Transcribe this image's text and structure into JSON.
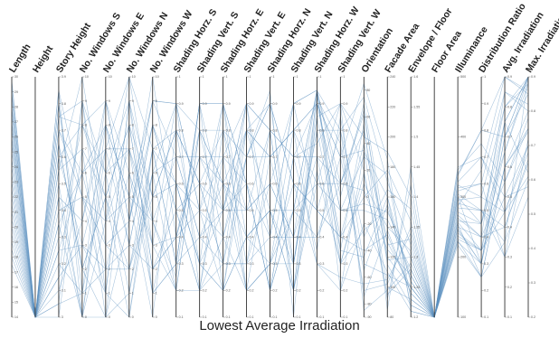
{
  "caption": "Lowest Average Irradiation",
  "chart_data": {
    "type": "parallel-coordinates",
    "title": "Lowest Average Irradiation",
    "axes": [
      {
        "name": "Length",
        "range": [
          14,
          30
        ],
        "ticks": [
          14,
          15,
          16,
          17,
          18,
          19,
          20,
          21,
          22,
          23,
          24,
          25,
          26,
          27,
          28,
          29,
          30
        ]
      },
      {
        "name": "Height",
        "range": [
          0,
          1
        ],
        "ticks": []
      },
      {
        "name": "Story Height",
        "range": [
          3.0,
          3.9
        ],
        "ticks": [
          3.0,
          3.1,
          3.2,
          3.3,
          3.4,
          3.5,
          3.6,
          3.7,
          3.8,
          3.9
        ]
      },
      {
        "name": "No. Windows S",
        "range": [
          0,
          10
        ],
        "ticks": [
          0,
          1,
          2,
          3,
          4,
          5,
          6,
          7,
          8,
          9,
          10
        ]
      },
      {
        "name": "No. Windows E",
        "range": [
          0,
          10
        ],
        "ticks": [
          0,
          1,
          2,
          3,
          4,
          5,
          6,
          7,
          8,
          9,
          10
        ]
      },
      {
        "name": "No. Windows N",
        "range": [
          0,
          10
        ],
        "ticks": [
          0,
          1,
          2,
          3,
          4,
          5,
          6,
          7,
          8,
          9,
          10
        ]
      },
      {
        "name": "No. Windows W",
        "range": [
          0,
          10
        ],
        "ticks": [
          0,
          1,
          2,
          3,
          4,
          5,
          6,
          7,
          8,
          9,
          10
        ]
      },
      {
        "name": "Shading Horz. S",
        "range": [
          0.1,
          1.0
        ],
        "ticks": [
          0.1,
          0.2,
          0.3,
          0.4,
          0.5,
          0.6,
          0.7,
          0.8,
          0.9,
          1.0
        ]
      },
      {
        "name": "Shading Vert. S",
        "range": [
          0.1,
          1.0
        ],
        "ticks": [
          0.1,
          0.2,
          0.3,
          0.4,
          0.5,
          0.6,
          0.7,
          0.8,
          0.9,
          1.0
        ]
      },
      {
        "name": "Shading Horz. E",
        "range": [
          0.1,
          1.0
        ],
        "ticks": [
          0.1,
          0.2,
          0.3,
          0.4,
          0.5,
          0.6,
          0.7,
          0.8,
          0.9,
          1.0
        ]
      },
      {
        "name": "Shading Vert. E",
        "range": [
          0.1,
          1.0
        ],
        "ticks": [
          0.1,
          0.2,
          0.3,
          0.4,
          0.5,
          0.6,
          0.7,
          0.8,
          0.9,
          1.0
        ]
      },
      {
        "name": "Shading Horz. N",
        "range": [
          0.1,
          1.0
        ],
        "ticks": [
          0.1,
          0.2,
          0.3,
          0.4,
          0.5,
          0.6,
          0.7,
          0.8,
          0.9,
          1.0
        ]
      },
      {
        "name": "Shading Vert. N",
        "range": [
          0.1,
          1.0
        ],
        "ticks": [
          0.1,
          0.2,
          0.3,
          0.4,
          0.5,
          0.6,
          0.7,
          0.8,
          0.9,
          1.0
        ]
      },
      {
        "name": "Shading Horz. W",
        "range": [
          0.1,
          1.0
        ],
        "ticks": [
          0.1,
          0.2,
          0.3,
          0.4,
          0.5,
          0.6,
          0.7,
          0.8,
          0.9,
          1.0
        ]
      },
      {
        "name": "Shading Vert. W",
        "range": [
          0.1,
          1.0
        ],
        "ticks": [
          0.1,
          0.2,
          0.3,
          0.4,
          0.5,
          0.6,
          0.7,
          0.8,
          0.9,
          1.0
        ]
      },
      {
        "name": "Orientation",
        "range": [
          -90,
          90
        ],
        "ticks": [
          -90,
          -80,
          -60,
          -40,
          -20,
          0,
          20,
          40,
          60,
          80
        ]
      },
      {
        "name": "Facade Area",
        "range": [
          80,
          240
        ],
        "ticks": [
          80,
          100,
          120,
          140,
          160,
          180,
          200,
          220,
          240
        ]
      },
      {
        "name": "Envelope / Floor",
        "range": [
          1.2,
          1.6
        ],
        "ticks": [
          1.2,
          1.25,
          1.3,
          1.35,
          1.4,
          1.45,
          1.5,
          1.55,
          1.6
        ]
      },
      {
        "name": "Floor Area",
        "range": [
          0,
          1
        ],
        "ticks": []
      },
      {
        "name": "Illuminance",
        "range": [
          100,
          500
        ],
        "ticks": [
          100,
          200,
          300,
          400,
          500
        ]
      },
      {
        "name": "Distribution Ratio",
        "range": [
          0.1,
          1.0
        ],
        "ticks": [
          0.1,
          0.2,
          0.3,
          0.4,
          0.5,
          0.6,
          0.7,
          0.8,
          0.9,
          1.0
        ]
      },
      {
        "name": "Avg. Irradiation",
        "range": [
          0.1,
          0.9
        ],
        "ticks": [
          0.1,
          0.2,
          0.3,
          0.4,
          0.5,
          0.6,
          0.7,
          0.8,
          0.9
        ]
      },
      {
        "name": "Max. Irradiation",
        "range": [
          0.2,
          0.9
        ],
        "ticks": [
          0.2,
          0.3,
          0.4,
          0.5,
          0.6,
          0.7,
          0.8,
          0.9
        ]
      }
    ],
    "series": [
      {
        "values": [
          29.5,
          0,
          3.85,
          0,
          0,
          4,
          9,
          0.9,
          0.2,
          0.3,
          0.7,
          0.95,
          0.1,
          0.95,
          0.6,
          62,
          120,
          1.25,
          0,
          300,
          0.3,
          0.7,
          0.85
        ]
      },
      {
        "values": [
          28.0,
          0,
          3.8,
          2,
          5,
          8,
          2,
          0.4,
          0.8,
          0.6,
          0.4,
          0.3,
          0.5,
          0.95,
          0.2,
          34,
          160,
          1.22,
          0,
          250,
          0.4,
          0.55,
          0.75
        ]
      },
      {
        "values": [
          27.0,
          0,
          3.75,
          9,
          3,
          2,
          7,
          0.6,
          0.5,
          0.9,
          0.2,
          0.7,
          0.8,
          0.9,
          0.5,
          -5,
          150,
          1.3,
          0,
          320,
          0.55,
          0.8,
          0.9
        ]
      },
      {
        "values": [
          26.0,
          0,
          3.7,
          6,
          8,
          5,
          4,
          0.25,
          0.9,
          0.2,
          0.8,
          0.5,
          0.3,
          0.92,
          0.75,
          -70,
          102,
          1.35,
          0,
          220,
          0.25,
          0.35,
          0.6
        ]
      },
      {
        "values": [
          25.0,
          0,
          3.6,
          3,
          1,
          9,
          5,
          0.8,
          0.3,
          0.5,
          0.9,
          0.2,
          0.7,
          0.7,
          0.3,
          18,
          95,
          1.28,
          0,
          275,
          0.45,
          0.65,
          0.88
        ]
      },
      {
        "values": [
          24.0,
          0,
          3.5,
          0,
          7,
          3,
          8,
          0.5,
          0.6,
          0.8,
          0.5,
          0.8,
          0.2,
          0.85,
          0.9,
          45,
          190,
          1.4,
          0,
          350,
          0.7,
          0.45,
          0.7
        ]
      },
      {
        "values": [
          23.0,
          0,
          3.4,
          5,
          4,
          7,
          1,
          0.3,
          0.4,
          0.3,
          0.3,
          0.6,
          0.9,
          0.5,
          0.4,
          -40,
          135,
          1.24,
          0,
          230,
          0.35,
          0.75,
          0.95
        ]
      },
      {
        "values": [
          22.0,
          0,
          3.3,
          8,
          6,
          1,
          6,
          0.7,
          0.7,
          0.7,
          0.6,
          0.4,
          0.4,
          0.95,
          0.8,
          75,
          170,
          1.32,
          0,
          290,
          0.5,
          0.3,
          0.55
        ]
      },
      {
        "values": [
          21.0,
          0,
          3.2,
          1,
          2,
          6,
          3,
          0.2,
          0.2,
          0.4,
          0.8,
          0.9,
          0.6,
          0.3,
          0.2,
          -20,
          110,
          1.21,
          0,
          245,
          0.3,
          0.6,
          0.8
        ]
      },
      {
        "values": [
          20.0,
          0,
          3.1,
          4,
          9,
          4,
          9,
          0.9,
          0.8,
          0.6,
          0.2,
          0.3,
          0.8,
          0.6,
          0.6,
          5,
          125,
          1.27,
          0,
          310,
          0.6,
          0.85,
          0.82
        ]
      },
      {
        "values": [
          19.0,
          0,
          3.0,
          7,
          0,
          8,
          2,
          0.4,
          0.5,
          0.2,
          0.7,
          0.7,
          0.3,
          0.8,
          0.35,
          55,
          85,
          1.45,
          0,
          265,
          0.4,
          0.4,
          0.65
        ]
      },
      {
        "values": [
          18.0,
          0,
          3.65,
          2,
          5,
          2,
          5,
          0.6,
          0.3,
          0.9,
          0.4,
          0.5,
          0.5,
          0.4,
          0.7,
          -55,
          155,
          1.26,
          0,
          335,
          0.8,
          0.7,
          0.9
        ]
      },
      {
        "values": [
          29.0,
          0,
          3.55,
          10,
          4,
          10,
          7,
          0.3,
          0.9,
          0.5,
          0.6,
          0.2,
          0.7,
          0.9,
          0.5,
          30,
          175,
          1.23,
          0,
          240,
          0.35,
          0.5,
          0.7
        ]
      },
      {
        "values": [
          28.5,
          0,
          3.45,
          0,
          8,
          5,
          0,
          0.8,
          0.6,
          0.3,
          0.9,
          0.8,
          0.2,
          0.6,
          0.9,
          -85,
          98,
          1.29,
          0,
          285,
          0.65,
          0.9,
          0.85
        ]
      },
      {
        "values": [
          27.5,
          0,
          3.35,
          6,
          2,
          3,
          8,
          0.5,
          0.2,
          0.8,
          0.3,
          0.4,
          0.9,
          0.95,
          0.3,
          10,
          140,
          1.31,
          0,
          255,
          0.25,
          0.6,
          0.75
        ]
      },
      {
        "values": [
          26.5,
          0,
          3.25,
          3,
          7,
          7,
          4,
          0.7,
          0.4,
          0.6,
          0.5,
          0.6,
          0.4,
          0.7,
          0.6,
          65,
          115,
          1.22,
          0,
          305,
          0.5,
          0.35,
          0.92
        ]
      },
      {
        "values": [
          25.5,
          0,
          3.15,
          9,
          1,
          0,
          6,
          0.2,
          0.8,
          0.4,
          0.7,
          0.9,
          0.6,
          0.5,
          0.8,
          -30,
          165,
          1.38,
          0,
          225,
          0.3,
          0.75,
          0.62
        ]
      },
      {
        "values": [
          24.5,
          0,
          3.05,
          1,
          6,
          9,
          3,
          0.9,
          0.5,
          0.7,
          0.2,
          0.3,
          0.3,
          0.85,
          0.4,
          40,
          130,
          1.25,
          0,
          345,
          0.75,
          0.55,
          0.78
        ]
      },
      {
        "values": [
          23.5,
          0,
          3.85,
          5,
          3,
          4,
          10,
          0.4,
          0.7,
          0.5,
          0.8,
          0.7,
          0.8,
          0.3,
          0.25,
          -65,
          105,
          1.34,
          0,
          260,
          0.45,
          0.8,
          0.88
        ]
      },
      {
        "values": [
          22.5,
          0,
          3.75,
          8,
          9,
          6,
          1,
          0.6,
          0.3,
          0.2,
          0.4,
          0.5,
          0.2,
          0.9,
          0.7,
          85,
          185,
          1.21,
          0,
          295,
          0.55,
          0.45,
          0.68
        ]
      },
      {
        "values": [
          21.5,
          0,
          3.65,
          2,
          0,
          1,
          7,
          0.3,
          0.9,
          0.9,
          0.6,
          0.2,
          0.5,
          0.6,
          0.5,
          -10,
          145,
          1.28,
          0,
          235,
          0.35,
          0.65,
          0.95
        ]
      },
      {
        "values": [
          20.5,
          0,
          3.55,
          7,
          5,
          8,
          5,
          0.8,
          0.6,
          0.3,
          0.3,
          0.8,
          0.7,
          0.75,
          0.9,
          20,
          92,
          1.42,
          0,
          315,
          0.6,
          0.3,
          0.72
        ]
      },
      {
        "values": [
          19.5,
          0,
          3.45,
          4,
          8,
          3,
          2,
          0.5,
          0.2,
          0.7,
          0.9,
          0.4,
          0.9,
          0.95,
          0.35,
          -45,
          160,
          1.26,
          0,
          270,
          0.4,
          0.85,
          0.8
        ]
      },
      {
        "values": [
          18.5,
          0,
          3.35,
          0,
          4,
          5,
          9,
          0.7,
          0.4,
          0.5,
          0.5,
          0.6,
          0.4,
          0.4,
          0.6,
          50,
          118,
          1.3,
          0,
          325,
          0.7,
          0.5,
          0.58
        ]
      },
      {
        "values": [
          17.5,
          0,
          3.25,
          6,
          7,
          10,
          4,
          0.2,
          0.8,
          0.8,
          0.7,
          0.9,
          0.3,
          0.8,
          0.8,
          -75,
          138,
          1.24,
          0,
          248,
          0.3,
          0.7,
          0.9
        ]
      },
      {
        "values": [
          29.8,
          0,
          3.15,
          3,
          2,
          2,
          6,
          0.9,
          0.5,
          0.4,
          0.2,
          0.3,
          0.6,
          0.5,
          0.4,
          0,
          178,
          1.36,
          0,
          282,
          0.5,
          0.4,
          0.66
        ]
      },
      {
        "values": [
          28.8,
          0,
          3.05,
          9,
          6,
          7,
          3,
          0.4,
          0.7,
          0.6,
          0.8,
          0.7,
          0.8,
          0.9,
          0.7,
          35,
          100,
          1.23,
          0,
          338,
          0.8,
          0.9,
          0.86
        ]
      },
      {
        "values": [
          27.8,
          0,
          3.8,
          1,
          9,
          4,
          8,
          0.6,
          0.3,
          0.2,
          0.4,
          0.5,
          0.2,
          0.65,
          0.3,
          -25,
          152,
          1.27,
          0,
          228,
          0.25,
          0.6,
          0.74
        ]
      },
      {
        "values": [
          26.8,
          0,
          3.7,
          5,
          1,
          9,
          1,
          0.3,
          0.9,
          0.9,
          0.6,
          0.2,
          0.5,
          0.95,
          0.55,
          70,
          128,
          1.33,
          0,
          300,
          0.45,
          0.75,
          0.93
        ]
      },
      {
        "values": [
          25.8,
          0,
          3.6,
          8,
          5,
          0,
          7,
          0.8,
          0.6,
          0.5,
          0.9,
          0.8,
          0.7,
          0.35,
          0.85,
          -50,
          108,
          1.25,
          0,
          258,
          0.35,
          0.45,
          0.61
        ]
      }
    ]
  }
}
